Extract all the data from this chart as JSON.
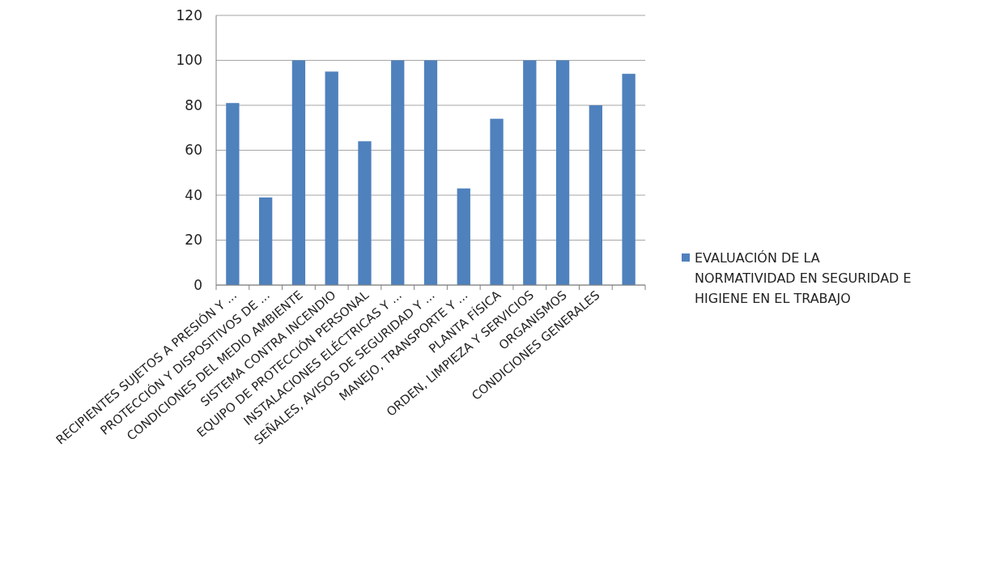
{
  "chart_data": {
    "type": "bar",
    "categories": [
      "RECIPIENTES SUJETOS A PRESIÓN Y ...",
      "PROTECCIÓN Y DISPOSITIVOS DE ...",
      "CONDICIONES DEL MEDIO AMBIENTE",
      "SISTEMA CONTRA INCENDIO",
      "EQUIPO DE PROTECCIÓN PERSONAL",
      "INSTALACIONES ELÉCTRICAS Y ...",
      "SEÑALES, AVISOS DE SEGURIDAD Y ...",
      "MANEJO, TRANSPORTE Y ...",
      "PLANTA FÍSICA",
      "ORDEN, LIMPIEZA Y SERVICIOS",
      "ORGANISMOS",
      "CONDICIONES GENERALES",
      null
    ],
    "series": [
      {
        "name": "EVALUACIÓN DE LA NORMATIVIDAD EN SEGURIDAD E HIGIENE EN EL TRABAJO",
        "color": "#4f81bd",
        "values": [
          81,
          39,
          100,
          95,
          64,
          100,
          100,
          43,
          74,
          100,
          100,
          80,
          94
        ]
      }
    ],
    "ylim": [
      0,
      120
    ],
    "yticks": [
      0,
      20,
      40,
      60,
      80,
      100,
      120
    ],
    "grid": "y",
    "legend": "right"
  }
}
